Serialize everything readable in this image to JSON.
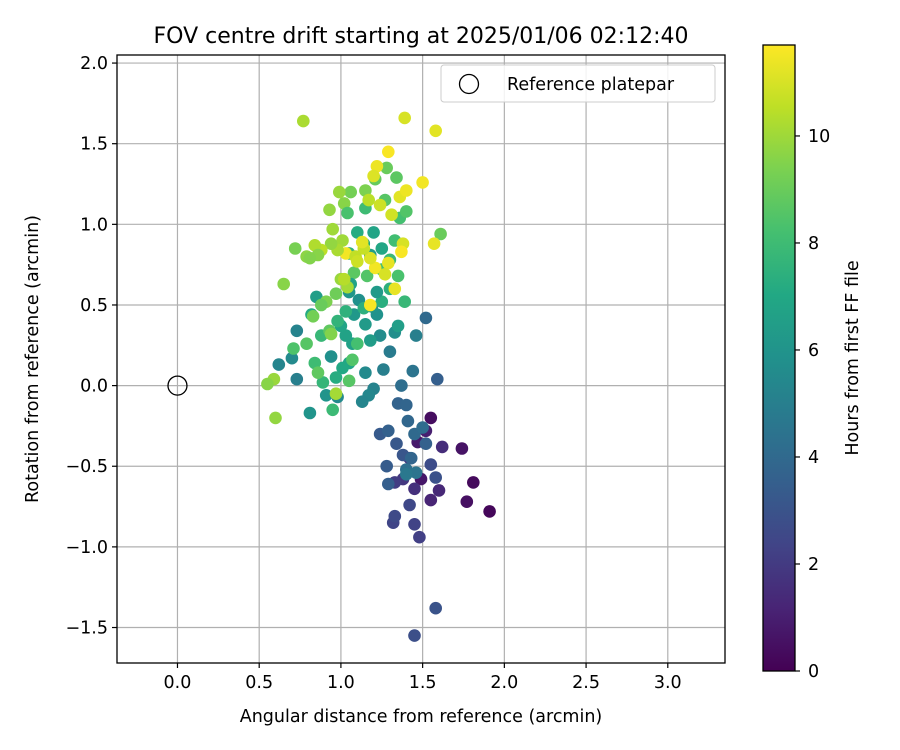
{
  "chart_data": {
    "type": "scatter",
    "title": "FOV centre drift starting at 2025/01/06 02:12:40",
    "xlabel": "Angular distance from reference (arcmin)",
    "ylabel": "Rotation from reference (arcmin)",
    "xlim": [
      -0.37,
      3.35
    ],
    "ylim": [
      -1.72,
      2.05
    ],
    "xticks": [
      0.0,
      0.5,
      1.0,
      1.5,
      2.0,
      2.5,
      3.0
    ],
    "xtick_labels": [
      "0.0",
      "0.5",
      "1.0",
      "1.5",
      "2.0",
      "2.5",
      "3.0"
    ],
    "yticks": [
      -1.5,
      -1.0,
      -0.5,
      0.0,
      0.5,
      1.0,
      1.5,
      2.0
    ],
    "ytick_labels": [
      "−1.5",
      "−1.0",
      "−0.5",
      "0.0",
      "0.5",
      "1.0",
      "1.5",
      "2.0"
    ],
    "grid": true,
    "legend": {
      "position": "top-right",
      "label": "Reference platepar",
      "marker": "open-circle"
    },
    "reference_point": {
      "x": 0.0,
      "y": 0.0
    },
    "colorbar": {
      "label": "Hours from first FF file",
      "colormap": "viridis",
      "range": [
        0,
        11.7
      ],
      "ticks": [
        0,
        2,
        4,
        6,
        8,
        10
      ],
      "tick_labels": [
        "0",
        "2",
        "4",
        "6",
        "8",
        "10"
      ]
    },
    "points": [
      {
        "x": 1.91,
        "y": -0.78,
        "h": 0.2
      },
      {
        "x": 1.81,
        "y": -0.6,
        "h": 0.3
      },
      {
        "x": 1.77,
        "y": -0.72,
        "h": 0.5
      },
      {
        "x": 1.74,
        "y": -0.39,
        "h": 0.6
      },
      {
        "x": 1.55,
        "y": -0.2,
        "h": 0.4
      },
      {
        "x": 1.49,
        "y": -0.58,
        "h": 0.7
      },
      {
        "x": 1.47,
        "y": -0.35,
        "h": 0.8
      },
      {
        "x": 1.52,
        "y": -0.28,
        "h": 1.0
      },
      {
        "x": 1.55,
        "y": -0.71,
        "h": 1.2
      },
      {
        "x": 1.6,
        "y": -0.65,
        "h": 1.3
      },
      {
        "x": 1.62,
        "y": -0.38,
        "h": 1.5
      },
      {
        "x": 1.45,
        "y": -0.64,
        "h": 1.6
      },
      {
        "x": 1.42,
        "y": -0.45,
        "h": 1.8
      },
      {
        "x": 1.38,
        "y": -0.58,
        "h": 1.9
      },
      {
        "x": 1.33,
        "y": -0.6,
        "h": 2.1
      },
      {
        "x": 1.48,
        "y": -0.94,
        "h": 2.2
      },
      {
        "x": 1.45,
        "y": -0.86,
        "h": 2.3
      },
      {
        "x": 1.32,
        "y": -0.85,
        "h": 2.4
      },
      {
        "x": 1.33,
        "y": -0.81,
        "h": 2.6
      },
      {
        "x": 1.42,
        "y": -0.74,
        "h": 2.5
      },
      {
        "x": 1.58,
        "y": -1.38,
        "h": 3.0
      },
      {
        "x": 1.45,
        "y": -1.55,
        "h": 2.8
      },
      {
        "x": 1.55,
        "y": -0.49,
        "h": 2.7
      },
      {
        "x": 1.58,
        "y": -0.57,
        "h": 2.9
      },
      {
        "x": 1.38,
        "y": -0.43,
        "h": 3.1
      },
      {
        "x": 1.34,
        "y": -0.36,
        "h": 3.2
      },
      {
        "x": 1.28,
        "y": -0.5,
        "h": 3.4
      },
      {
        "x": 1.29,
        "y": -0.61,
        "h": 3.5
      },
      {
        "x": 1.24,
        "y": -0.3,
        "h": 3.3
      },
      {
        "x": 1.29,
        "y": -0.28,
        "h": 3.6
      },
      {
        "x": 1.35,
        "y": -0.11,
        "h": 3.7
      },
      {
        "x": 1.4,
        "y": -0.12,
        "h": 3.8
      },
      {
        "x": 1.41,
        "y": -0.22,
        "h": 3.9
      },
      {
        "x": 1.45,
        "y": -0.3,
        "h": 4.0
      },
      {
        "x": 1.5,
        "y": -0.26,
        "h": 4.1
      },
      {
        "x": 1.52,
        "y": -0.36,
        "h": 3.6
      },
      {
        "x": 1.43,
        "y": -0.45,
        "h": 3.8
      },
      {
        "x": 1.4,
        "y": -0.52,
        "h": 4.3
      },
      {
        "x": 1.46,
        "y": -0.54,
        "h": 4.5
      },
      {
        "x": 1.4,
        "y": -0.55,
        "h": 4.7
      },
      {
        "x": 1.59,
        "y": 0.04,
        "h": 3.5
      },
      {
        "x": 1.52,
        "y": 0.42,
        "h": 4.0
      },
      {
        "x": 1.44,
        "y": 0.09,
        "h": 4.5
      },
      {
        "x": 1.37,
        "y": 0.0,
        "h": 4.2
      },
      {
        "x": 1.3,
        "y": 0.21,
        "h": 4.8
      },
      {
        "x": 1.26,
        "y": 0.1,
        "h": 5.0
      },
      {
        "x": 1.2,
        "y": -0.02,
        "h": 5.2
      },
      {
        "x": 1.17,
        "y": -0.06,
        "h": 5.4
      },
      {
        "x": 1.13,
        "y": -0.1,
        "h": 5.3
      },
      {
        "x": 1.15,
        "y": 0.08,
        "h": 5.5
      },
      {
        "x": 1.24,
        "y": 0.31,
        "h": 5.6
      },
      {
        "x": 1.33,
        "y": 0.33,
        "h": 5.7
      },
      {
        "x": 1.46,
        "y": 0.31,
        "h": 5.0
      },
      {
        "x": 1.35,
        "y": 0.37,
        "h": 6.5
      },
      {
        "x": 1.22,
        "y": 0.44,
        "h": 5.9
      },
      {
        "x": 1.19,
        "y": 0.49,
        "h": 6.0
      },
      {
        "x": 1.11,
        "y": 0.53,
        "h": 5.8
      },
      {
        "x": 1.05,
        "y": 0.58,
        "h": 6.1
      },
      {
        "x": 1.08,
        "y": 0.44,
        "h": 6.2
      },
      {
        "x": 1.15,
        "y": 0.38,
        "h": 6.3
      },
      {
        "x": 1.18,
        "y": 0.28,
        "h": 6.4
      },
      {
        "x": 1.07,
        "y": 0.26,
        "h": 6.6
      },
      {
        "x": 1.03,
        "y": 0.31,
        "h": 6.7
      },
      {
        "x": 1.0,
        "y": 0.37,
        "h": 6.8
      },
      {
        "x": 1.05,
        "y": 0.14,
        "h": 6.9
      },
      {
        "x": 1.01,
        "y": 0.11,
        "h": 7.0
      },
      {
        "x": 0.97,
        "y": 0.05,
        "h": 7.2
      },
      {
        "x": 0.98,
        "y": -0.07,
        "h": 5.5
      },
      {
        "x": 0.91,
        "y": -0.06,
        "h": 6.0
      },
      {
        "x": 0.94,
        "y": 0.18,
        "h": 5.8
      },
      {
        "x": 0.85,
        "y": 0.55,
        "h": 6.5
      },
      {
        "x": 0.82,
        "y": 0.44,
        "h": 7.1
      },
      {
        "x": 0.73,
        "y": 0.34,
        "h": 5.2
      },
      {
        "x": 0.7,
        "y": 0.17,
        "h": 5.5
      },
      {
        "x": 0.62,
        "y": 0.13,
        "h": 5.3
      },
      {
        "x": 0.73,
        "y": 0.04,
        "h": 5.0
      },
      {
        "x": 0.81,
        "y": -0.17,
        "h": 6.0
      },
      {
        "x": 0.89,
        "y": 0.02,
        "h": 7.7
      },
      {
        "x": 0.95,
        "y": -0.15,
        "h": 7.9
      },
      {
        "x": 0.84,
        "y": 0.14,
        "h": 8.0
      },
      {
        "x": 0.71,
        "y": 0.23,
        "h": 8.4
      },
      {
        "x": 0.79,
        "y": 0.26,
        "h": 8.6
      },
      {
        "x": 0.88,
        "y": 0.31,
        "h": 7.8
      },
      {
        "x": 0.93,
        "y": 0.34,
        "h": 8.8
      },
      {
        "x": 0.98,
        "y": 0.4,
        "h": 7.6
      },
      {
        "x": 1.03,
        "y": 0.46,
        "h": 7.5
      },
      {
        "x": 1.14,
        "y": 0.48,
        "h": 7.4
      },
      {
        "x": 1.25,
        "y": 0.52,
        "h": 7.3
      },
      {
        "x": 1.3,
        "y": 0.6,
        "h": 7.4
      },
      {
        "x": 1.39,
        "y": 0.52,
        "h": 7.8
      },
      {
        "x": 1.35,
        "y": 0.68,
        "h": 8.3
      },
      {
        "x": 1.25,
        "y": 0.72,
        "h": 8.2
      },
      {
        "x": 1.16,
        "y": 0.68,
        "h": 8.5
      },
      {
        "x": 1.08,
        "y": 0.7,
        "h": 8.7
      },
      {
        "x": 1.05,
        "y": 0.82,
        "h": 7.6
      },
      {
        "x": 1.14,
        "y": 0.88,
        "h": 7.0
      },
      {
        "x": 1.2,
        "y": 0.95,
        "h": 6.8
      },
      {
        "x": 1.18,
        "y": 0.81,
        "h": 6.5
      },
      {
        "x": 1.25,
        "y": 0.85,
        "h": 6.9
      },
      {
        "x": 1.1,
        "y": 0.95,
        "h": 7.2
      },
      {
        "x": 1.22,
        "y": 0.58,
        "h": 6.3
      },
      {
        "x": 1.06,
        "y": 0.63,
        "h": 6.7
      },
      {
        "x": 1.3,
        "y": 0.78,
        "h": 7.9
      },
      {
        "x": 1.33,
        "y": 0.9,
        "h": 8.1
      },
      {
        "x": 1.36,
        "y": 1.04,
        "h": 8.2
      },
      {
        "x": 1.4,
        "y": 1.08,
        "h": 8.5
      },
      {
        "x": 1.34,
        "y": 1.29,
        "h": 8.7
      },
      {
        "x": 1.28,
        "y": 1.35,
        "h": 9.0
      },
      {
        "x": 1.21,
        "y": 1.28,
        "h": 8.9
      },
      {
        "x": 1.15,
        "y": 1.21,
        "h": 9.4
      },
      {
        "x": 1.06,
        "y": 1.2,
        "h": 9.2
      },
      {
        "x": 0.99,
        "y": 1.2,
        "h": 9.9
      },
      {
        "x": 1.02,
        "y": 1.13,
        "h": 9.6
      },
      {
        "x": 0.93,
        "y": 1.09,
        "h": 9.8
      },
      {
        "x": 1.04,
        "y": 1.07,
        "h": 8.3
      },
      {
        "x": 1.15,
        "y": 1.1,
        "h": 8.0
      },
      {
        "x": 1.27,
        "y": 1.15,
        "h": 8.6
      },
      {
        "x": 1.61,
        "y": 0.94,
        "h": 9.0
      },
      {
        "x": 1.57,
        "y": 0.88,
        "h": 11.3
      },
      {
        "x": 1.5,
        "y": 1.26,
        "h": 11.5
      },
      {
        "x": 1.58,
        "y": 1.58,
        "h": 11.2
      },
      {
        "x": 1.39,
        "y": 1.66,
        "h": 11.0
      },
      {
        "x": 1.29,
        "y": 1.45,
        "h": 11.6
      },
      {
        "x": 1.22,
        "y": 1.36,
        "h": 11.4
      },
      {
        "x": 1.2,
        "y": 1.3,
        "h": 11.1
      },
      {
        "x": 1.17,
        "y": 1.15,
        "h": 10.5
      },
      {
        "x": 1.24,
        "y": 1.12,
        "h": 10.8
      },
      {
        "x": 1.31,
        "y": 1.06,
        "h": 10.9
      },
      {
        "x": 1.36,
        "y": 1.17,
        "h": 11.2
      },
      {
        "x": 1.4,
        "y": 1.21,
        "h": 11.4
      },
      {
        "x": 1.38,
        "y": 0.88,
        "h": 11.0
      },
      {
        "x": 1.37,
        "y": 0.83,
        "h": 11.6
      },
      {
        "x": 1.29,
        "y": 0.76,
        "h": 11.3
      },
      {
        "x": 1.21,
        "y": 0.73,
        "h": 11.5
      },
      {
        "x": 1.18,
        "y": 0.79,
        "h": 11.1
      },
      {
        "x": 1.14,
        "y": 0.85,
        "h": 10.7
      },
      {
        "x": 1.13,
        "y": 0.89,
        "h": 11.2
      },
      {
        "x": 1.01,
        "y": 0.9,
        "h": 10.0
      },
      {
        "x": 1.03,
        "y": 0.82,
        "h": 11.5
      },
      {
        "x": 0.98,
        "y": 0.84,
        "h": 10.2
      },
      {
        "x": 0.95,
        "y": 0.97,
        "h": 10.0
      },
      {
        "x": 0.94,
        "y": 0.88,
        "h": 9.8
      },
      {
        "x": 0.88,
        "y": 0.84,
        "h": 10.5
      },
      {
        "x": 0.84,
        "y": 0.87,
        "h": 10.3
      },
      {
        "x": 0.86,
        "y": 0.81,
        "h": 9.6
      },
      {
        "x": 0.79,
        "y": 0.8,
        "h": 9.7
      },
      {
        "x": 0.81,
        "y": 0.79,
        "h": 9.5
      },
      {
        "x": 0.72,
        "y": 0.85,
        "h": 9.3
      },
      {
        "x": 0.77,
        "y": 1.64,
        "h": 10.2
      },
      {
        "x": 0.65,
        "y": 0.63,
        "h": 9.6
      },
      {
        "x": 0.91,
        "y": 0.52,
        "h": 9.4
      },
      {
        "x": 0.88,
        "y": 0.5,
        "h": 9.0
      },
      {
        "x": 0.83,
        "y": 0.43,
        "h": 9.2
      },
      {
        "x": 0.94,
        "y": 0.32,
        "h": 9.5
      },
      {
        "x": 0.97,
        "y": 0.57,
        "h": 9.1
      },
      {
        "x": 1.0,
        "y": 0.66,
        "h": 9.9
      },
      {
        "x": 1.04,
        "y": 0.61,
        "h": 10.1
      },
      {
        "x": 1.02,
        "y": 0.66,
        "h": 10.4
      },
      {
        "x": 1.09,
        "y": 0.8,
        "h": 10.6
      },
      {
        "x": 1.1,
        "y": 0.77,
        "h": 10.8
      },
      {
        "x": 1.27,
        "y": 0.69,
        "h": 11.0
      },
      {
        "x": 1.33,
        "y": 0.6,
        "h": 11.3
      },
      {
        "x": 1.18,
        "y": 0.5,
        "h": 11.6
      },
      {
        "x": 0.97,
        "y": -0.05,
        "h": 10.1
      },
      {
        "x": 0.6,
        "y": -0.2,
        "h": 9.8
      },
      {
        "x": 0.59,
        "y": 0.04,
        "h": 9.9
      },
      {
        "x": 0.55,
        "y": 0.01,
        "h": 9.6
      },
      {
        "x": 0.86,
        "y": 0.08,
        "h": 8.8
      },
      {
        "x": 1.05,
        "y": 0.03,
        "h": 8.6
      },
      {
        "x": 1.07,
        "y": 0.16,
        "h": 8.5
      },
      {
        "x": 1.1,
        "y": 0.26,
        "h": 8.2
      }
    ]
  }
}
